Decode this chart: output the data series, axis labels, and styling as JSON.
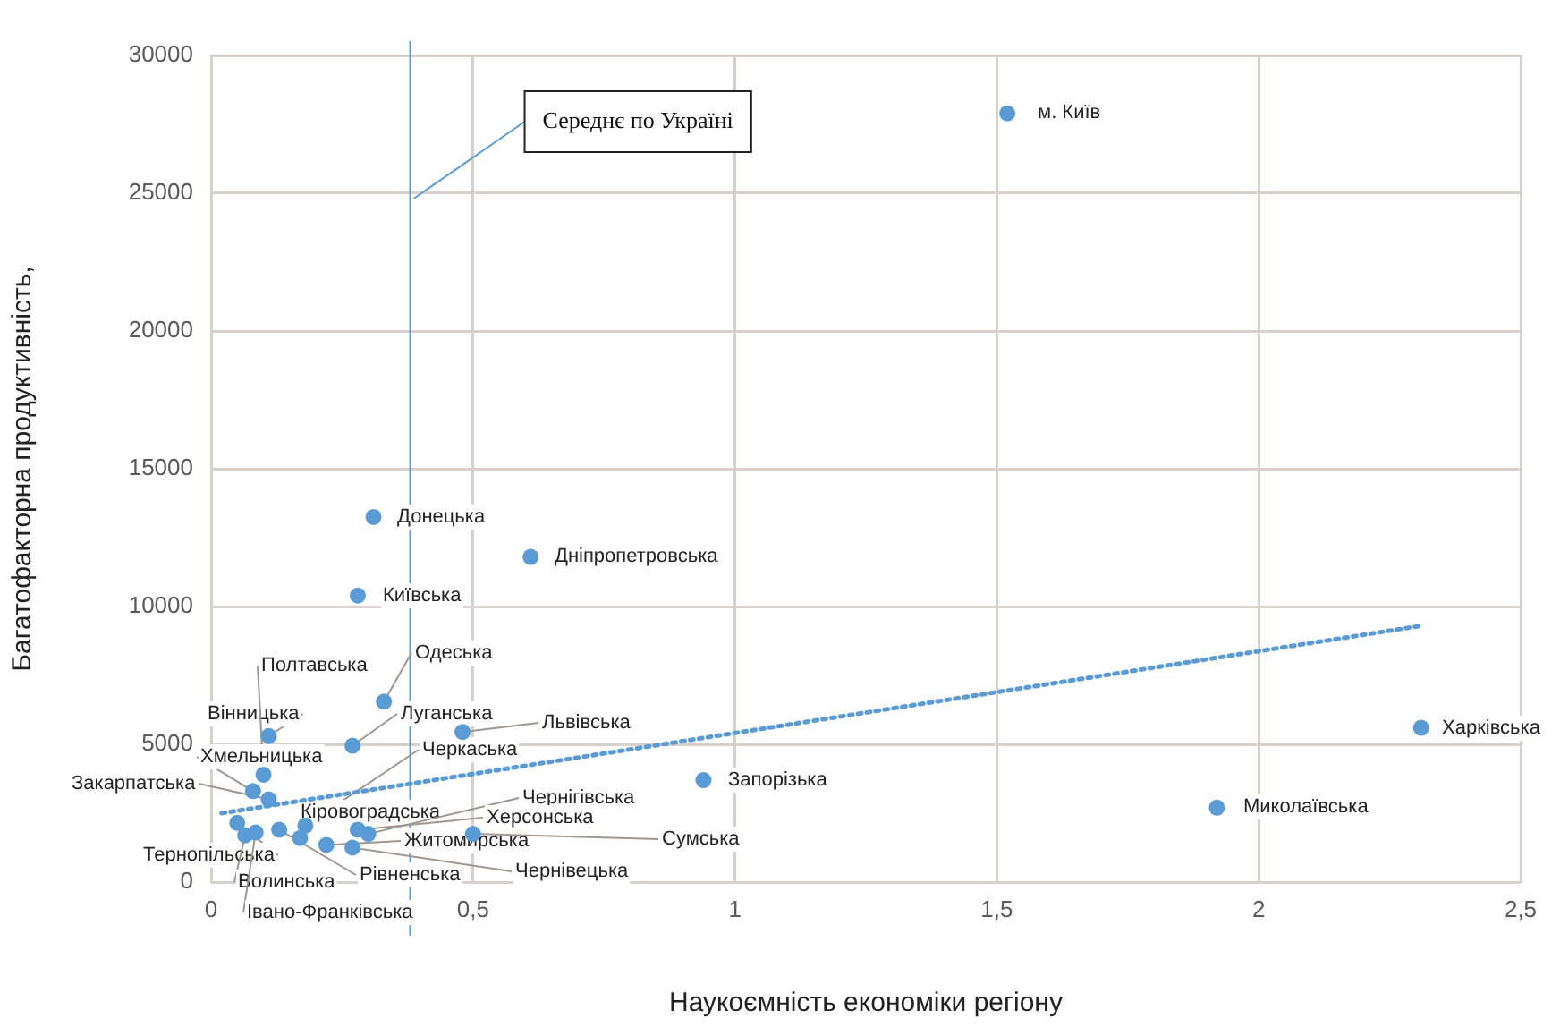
{
  "chart_data": {
    "type": "scatter",
    "xlabel": "Наукоємність економіки регіону",
    "ylabel": "Багатофакторна продуктивність,",
    "xlim": [
      0,
      2.5
    ],
    "xticks": [
      {
        "value": 0,
        "label": "0"
      },
      {
        "value": 0.5,
        "label": "0,5"
      },
      {
        "value": 1,
        "label": "1"
      },
      {
        "value": 1.5,
        "label": "1,5"
      },
      {
        "value": 2,
        "label": "2"
      },
      {
        "value": 2.5,
        "label": "2,5"
      }
    ],
    "ylim": [
      0,
      30000
    ],
    "yticks": [
      0,
      5000,
      10000,
      15000,
      20000,
      25000,
      30000
    ],
    "grid": true,
    "legend": false,
    "marker": "circle",
    "series": [
      {
        "color": "#5b9bd5",
        "x": [
          1.52,
          0.31,
          0.61,
          0.28,
          2.31,
          0.94,
          1.92,
          0.48,
          0.33,
          0.27,
          0.11,
          0.1,
          0.08,
          0.11,
          0.18,
          0.17,
          0.3,
          0.28,
          0.22,
          0.5,
          0.05,
          0.065,
          0.13,
          0.27,
          0.085
        ],
        "values": [
          27900,
          13250,
          11800,
          10400,
          5600,
          3700,
          2700,
          5450,
          6550,
          4950,
          5300,
          3900,
          3300,
          3000,
          2050,
          1600,
          1750,
          1900,
          1350,
          1750,
          2150,
          1700,
          1900,
          1250,
          1800
        ]
      },
      {
        "type": "line",
        "color": "#5b9bd5",
        "line_style": "dotted",
        "marker": "none",
        "x": [
          0.02,
          2.31
        ],
        "values": [
          2500,
          9300
        ]
      }
    ],
    "ref_lines": [
      {
        "axis": "x",
        "value": 0.38,
        "label": "Середнє по Україні",
        "color": "#5b9bd5"
      }
    ],
    "annotations": [
      {
        "text": "м. Київ",
        "x": 1.52,
        "y": 27900
      },
      {
        "text": "Донецька",
        "x": 0.31,
        "y": 13250
      },
      {
        "text": "Дніпропетровська",
        "x": 0.61,
        "y": 11800
      },
      {
        "text": "Київська",
        "x": 0.28,
        "y": 10400
      },
      {
        "text": "Харківська",
        "x": 2.31,
        "y": 5600
      },
      {
        "text": "Запорізька",
        "x": 0.94,
        "y": 3700
      },
      {
        "text": "Миколаївська",
        "x": 1.92,
        "y": 2700
      },
      {
        "text": "Львівська",
        "x": 0.48,
        "y": 5450
      },
      {
        "text": "Одеська",
        "x": 0.33,
        "y": 6550
      },
      {
        "text": "Луганська",
        "x": 0.27,
        "y": 4950
      },
      {
        "text": "Вінницька",
        "x": 0.11,
        "y": 5300
      },
      {
        "text": "Полтавська",
        "x": 0.1,
        "y": 3900
      },
      {
        "text": "Хмельницька",
        "x": 0.08,
        "y": 3300
      },
      {
        "text": "Закарпатська",
        "x": 0.11,
        "y": 3000
      },
      {
        "text": "Черкаська",
        "x": 0.18,
        "y": 2050
      },
      {
        "text": "Кіровоградська",
        "x": 0.17,
        "y": 1600
      },
      {
        "text": "Чернігівська",
        "x": 0.3,
        "y": 1750
      },
      {
        "text": "Херсонська",
        "x": 0.28,
        "y": 1900
      },
      {
        "text": "Житомирська",
        "x": 0.22,
        "y": 1350
      },
      {
        "text": "Сумська",
        "x": 0.5,
        "y": 1750
      },
      {
        "text": "Тернопільська",
        "x": 0.05,
        "y": 2150
      },
      {
        "text": "Волинська",
        "x": 0.065,
        "y": 1700
      },
      {
        "text": "Рівненська",
        "x": 0.13,
        "y": 1900
      },
      {
        "text": "Чернівецька",
        "x": 0.27,
        "y": 1250
      },
      {
        "text": "Івано-Франківська",
        "x": 0.085,
        "y": 1800
      }
    ]
  }
}
